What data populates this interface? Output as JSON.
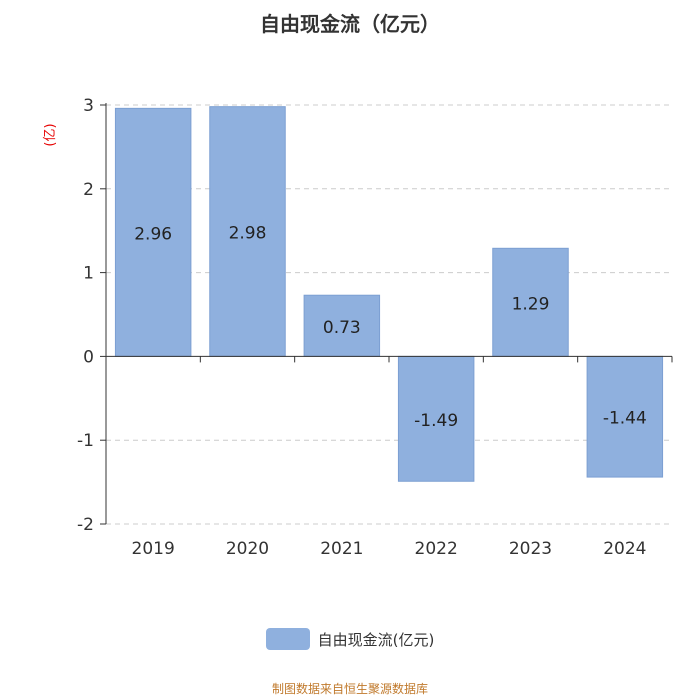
{
  "chart_data": {
    "type": "bar",
    "title": "自由现金流（亿元）",
    "ylabel": "亿",
    "categories": [
      "2019",
      "2020",
      "2021",
      "2022",
      "2023",
      "2024"
    ],
    "series": [
      {
        "name": "自由现金流(亿元)",
        "values": [
          2.96,
          2.98,
          0.73,
          -1.49,
          1.29,
          -1.44
        ]
      }
    ],
    "data_labels": [
      "2.96",
      "2.98",
      "0.73",
      "-1.49",
      "1.29",
      "-1.44"
    ],
    "y_ticks": [
      "3",
      "2",
      "1",
      "0",
      "-1",
      "-2"
    ],
    "ylim": [
      -2,
      3
    ],
    "grid": true,
    "legend_position": "bottom"
  },
  "legend": {
    "label": "自由现金流(亿元)"
  },
  "source": "制图数据来自恒生聚源数据库",
  "colors": {
    "bar": "#8fb0de",
    "bar_edge": "#7c9fd2",
    "grid": "#cccccc",
    "axis": "#333333",
    "ylabel": "#e60000",
    "source": "#c0792b"
  }
}
